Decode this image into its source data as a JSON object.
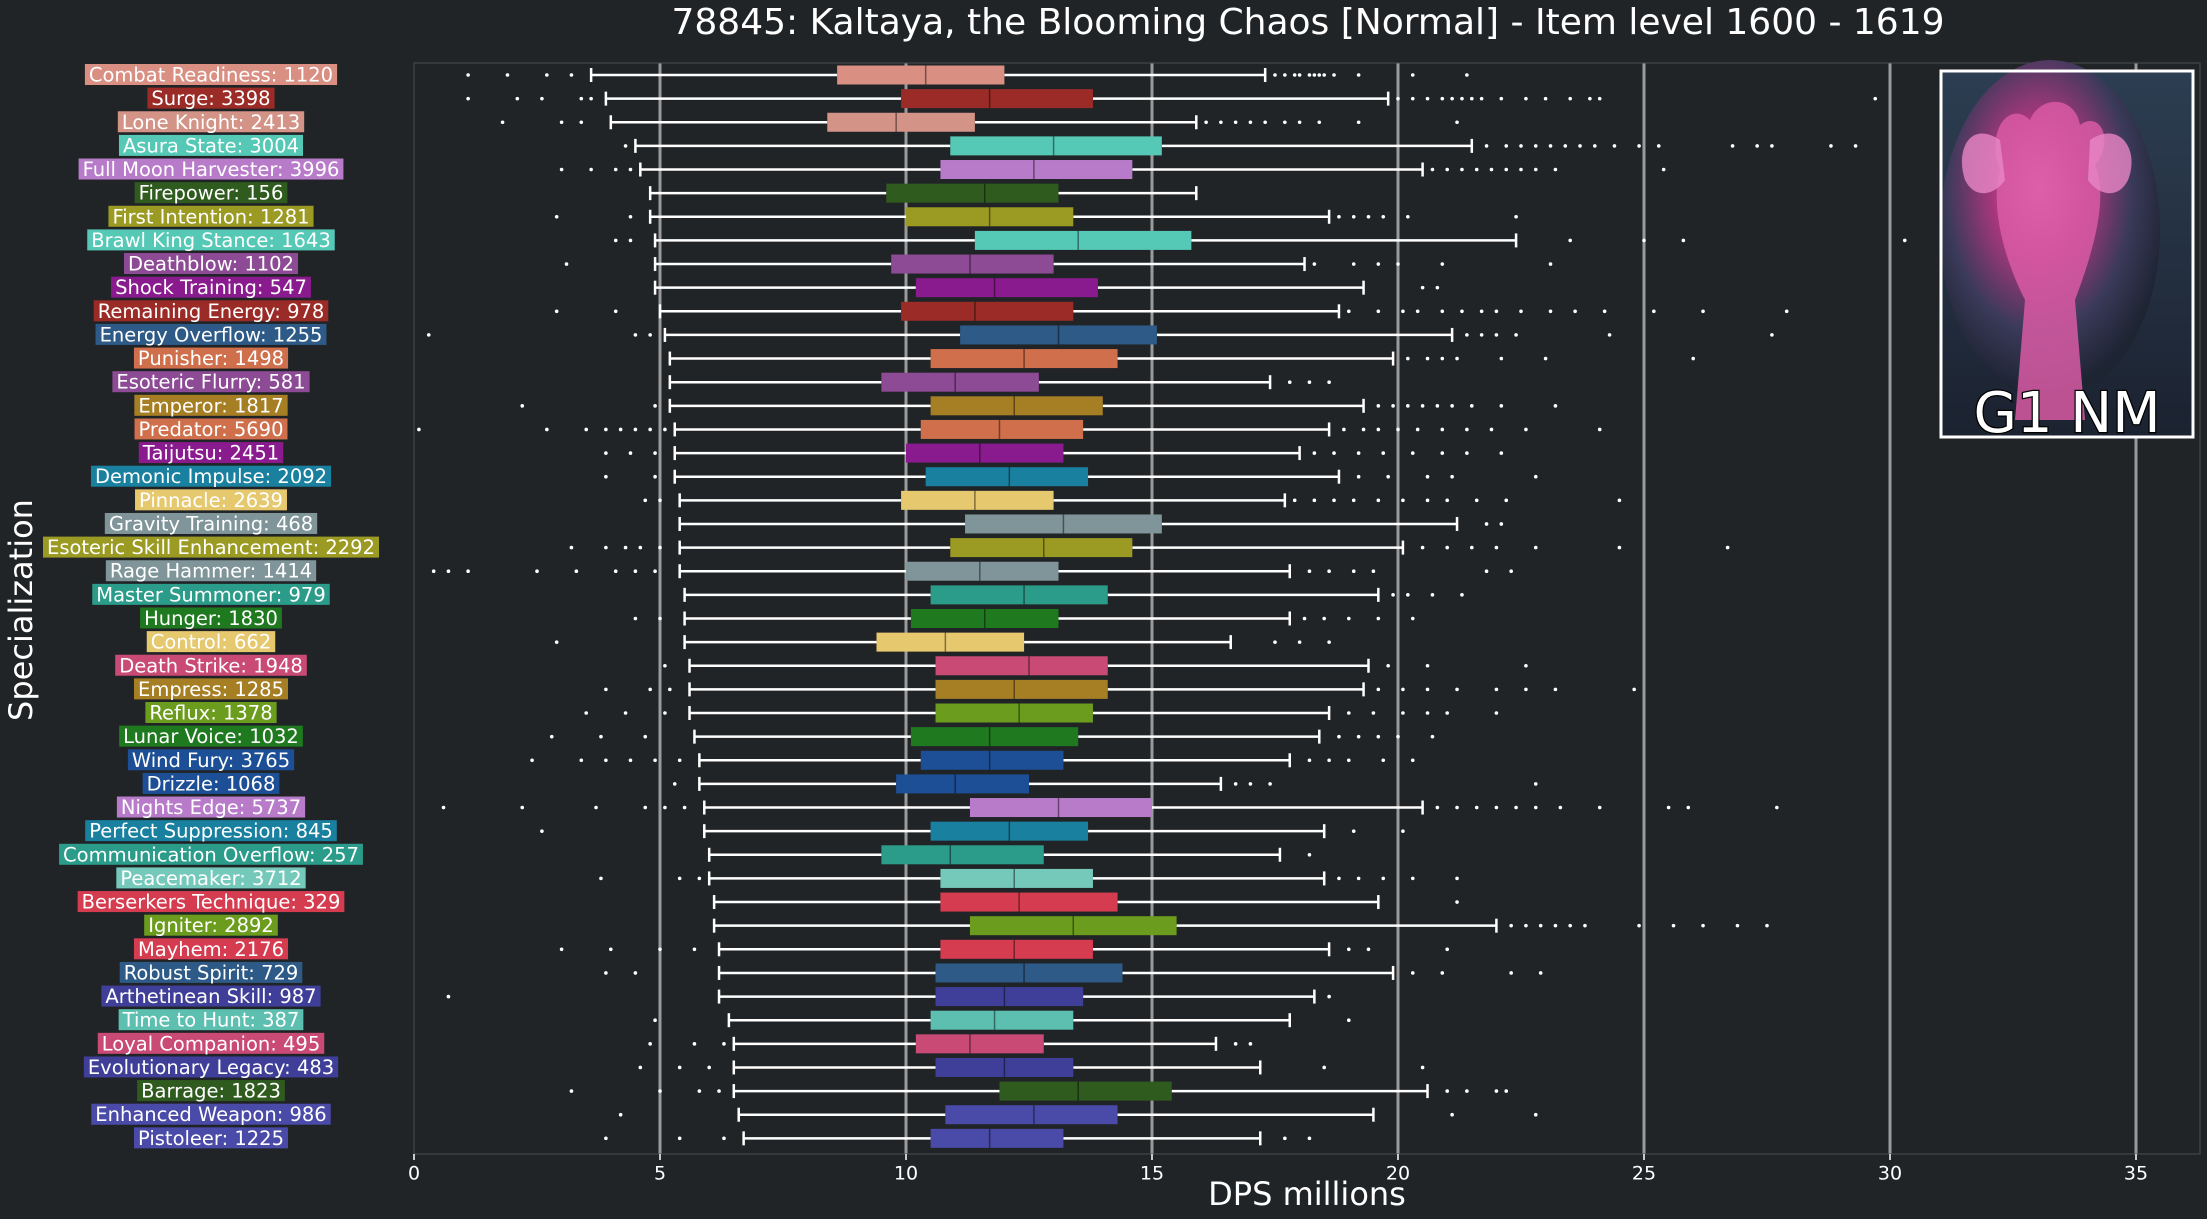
{
  "chart_data": {
    "type": "boxplot",
    "orientation": "horizontal",
    "title": "78845: Kaltaya, the Blooming Chaos [Normal] - Item level 1600 - 1619",
    "xlabel": "DPS millions",
    "ylabel": "Specialization",
    "xlim": [
      0,
      36.2
    ],
    "xticks": [
      0,
      5,
      10,
      15,
      20,
      25,
      30,
      35
    ],
    "grid": "vertical lines at 5, 10, 15, 20, 25, 30, 35",
    "badge": {
      "text": "G1 NM",
      "position": "top-right"
    },
    "colors": {
      "background": "#212427",
      "grid": "#9a9a9a",
      "whisker": "#ffffff",
      "outlier": "#ffffff"
    },
    "series": [
      {
        "label": "Combat Readiness: 1120",
        "color": "#d98f82",
        "q1": 8.6,
        "median": 10.4,
        "q3": 12.0,
        "whislo": 3.6,
        "whishi": 17.3,
        "outliers": [
          1.1,
          1.9,
          2.7,
          3.2,
          17.5,
          17.7,
          17.9,
          18.0,
          18.2,
          18.3,
          18.4,
          18.5,
          18.7,
          19.2,
          20.3,
          21.4
        ]
      },
      {
        "label": "Surge: 3398",
        "color": "#9b2b26",
        "q1": 9.9,
        "median": 11.7,
        "q3": 13.8,
        "whislo": 3.9,
        "whishi": 19.8,
        "outliers": [
          1.1,
          2.1,
          2.6,
          3.4,
          3.6,
          20.0,
          20.3,
          20.6,
          20.9,
          21.1,
          21.3,
          21.5,
          21.7,
          22.1,
          22.6,
          23.0,
          23.5,
          23.9,
          24.1,
          29.7
        ]
      },
      {
        "label": "Lone Knight: 2413",
        "color": "#d39487",
        "q1": 8.4,
        "median": 9.8,
        "q3": 11.4,
        "whislo": 4.0,
        "whishi": 15.9,
        "outliers": [
          1.8,
          3.0,
          3.4,
          16.1,
          16.4,
          16.7,
          17.0,
          17.3,
          17.7,
          18.0,
          18.4,
          19.2,
          21.2
        ]
      },
      {
        "label": "Asura State: 3004",
        "color": "#55c8b6",
        "q1": 10.9,
        "median": 13.0,
        "q3": 15.2,
        "whislo": 4.5,
        "whishi": 21.5,
        "outliers": [
          4.3,
          21.8,
          22.2,
          22.5,
          22.8,
          23.1,
          23.4,
          23.7,
          24.0,
          24.4,
          24.9,
          25.3,
          26.8,
          27.3,
          27.6,
          28.8,
          29.3
        ]
      },
      {
        "label": "Full Moon Harvester: 3996",
        "color": "#b87bc9",
        "q1": 10.7,
        "median": 12.6,
        "q3": 14.6,
        "whislo": 4.6,
        "whishi": 20.5,
        "outliers": [
          3.0,
          3.6,
          4.1,
          4.4,
          20.7,
          21.0,
          21.3,
          21.6,
          21.9,
          22.2,
          22.5,
          22.8,
          23.2,
          25.4
        ]
      },
      {
        "label": "Firepower: 156",
        "color": "#2f5b1f",
        "q1": 9.6,
        "median": 11.6,
        "q3": 13.1,
        "whislo": 4.8,
        "whishi": 15.9,
        "outliers": []
      },
      {
        "label": "First Intention: 1281",
        "color": "#9b9a22",
        "q1": 10.0,
        "median": 11.7,
        "q3": 13.4,
        "whislo": 4.8,
        "whishi": 18.6,
        "outliers": [
          2.9,
          4.4,
          18.8,
          19.1,
          19.4,
          19.7,
          20.2,
          22.4
        ]
      },
      {
        "label": "Brawl King Stance: 1643",
        "color": "#55c8b6",
        "q1": 11.4,
        "median": 13.5,
        "q3": 15.8,
        "whislo": 4.9,
        "whishi": 22.4,
        "outliers": [
          4.1,
          4.4,
          23.5,
          25.0,
          25.8,
          30.3
        ]
      },
      {
        "label": "Deathblow: 1102",
        "color": "#8e4b95",
        "q1": 9.7,
        "median": 11.3,
        "q3": 13.0,
        "whislo": 4.9,
        "whishi": 18.1,
        "outliers": [
          3.1,
          18.3,
          19.1,
          19.6,
          20.0,
          20.9,
          23.1
        ]
      },
      {
        "label": "Shock Training: 547",
        "color": "#8a1b8e",
        "q1": 10.2,
        "median": 11.8,
        "q3": 13.9,
        "whislo": 4.9,
        "whishi": 19.3,
        "outliers": [
          20.5,
          20.8
        ]
      },
      {
        "label": "Remaining Energy: 978",
        "color": "#9b2b26",
        "q1": 9.9,
        "median": 11.4,
        "q3": 13.4,
        "whislo": 5.0,
        "whishi": 18.8,
        "outliers": [
          2.9,
          4.1,
          19.0,
          19.6,
          20.1,
          20.4,
          20.9,
          21.3,
          21.7,
          22.0,
          22.5,
          23.1,
          23.6,
          24.2,
          25.2,
          26.2,
          27.9
        ]
      },
      {
        "label": "Energy Overflow: 1255",
        "color": "#2d5a86",
        "q1": 11.1,
        "median": 13.1,
        "q3": 15.1,
        "whislo": 5.1,
        "whishi": 21.1,
        "outliers": [
          0.3,
          4.5,
          4.8,
          21.4,
          21.7,
          22.0,
          22.4,
          24.3,
          27.6
        ]
      },
      {
        "label": "Punisher: 1498",
        "color": "#cf6f4b",
        "q1": 10.5,
        "median": 12.4,
        "q3": 14.3,
        "whislo": 5.2,
        "whishi": 19.9,
        "outliers": [
          20.2,
          20.6,
          20.9,
          21.2,
          22.1,
          23.0,
          26.0
        ]
      },
      {
        "label": "Esoteric Flurry: 581",
        "color": "#8e4b95",
        "q1": 9.5,
        "median": 11.0,
        "q3": 12.7,
        "whislo": 5.2,
        "whishi": 17.4,
        "outliers": [
          17.8,
          18.2,
          18.6
        ]
      },
      {
        "label": "Emperor: 1817",
        "color": "#a67f24",
        "q1": 10.5,
        "median": 12.2,
        "q3": 14.0,
        "whislo": 5.2,
        "whishi": 19.3,
        "outliers": [
          2.2,
          4.9,
          19.6,
          19.9,
          20.2,
          20.5,
          20.8,
          21.1,
          21.5,
          22.1,
          23.2
        ]
      },
      {
        "label": "Predator: 5690",
        "color": "#cf6f4b",
        "q1": 10.3,
        "median": 11.9,
        "q3": 13.6,
        "whislo": 5.3,
        "whishi": 18.6,
        "outliers": [
          0.1,
          2.7,
          3.5,
          3.9,
          4.2,
          4.5,
          4.8,
          5.1,
          18.9,
          19.3,
          19.6,
          20.0,
          20.4,
          20.9,
          21.4,
          21.9,
          22.6,
          24.1
        ]
      },
      {
        "label": "Taijutsu: 2451",
        "color": "#8a1b8e",
        "q1": 10.0,
        "median": 11.5,
        "q3": 13.2,
        "whislo": 5.3,
        "whishi": 18.0,
        "outliers": [
          3.9,
          4.4,
          4.9,
          18.3,
          18.7,
          19.2,
          19.7,
          20.3,
          20.9,
          21.4,
          22.1
        ]
      },
      {
        "label": "Demonic Impulse: 2092",
        "color": "#1980a0",
        "q1": 10.4,
        "median": 12.1,
        "q3": 13.7,
        "whislo": 5.3,
        "whishi": 18.8,
        "outliers": [
          3.9,
          4.9,
          19.2,
          19.8,
          20.6,
          21.1,
          22.8
        ]
      },
      {
        "label": "Pinnacle: 2639",
        "color": "#e6c86e",
        "q1": 9.9,
        "median": 11.4,
        "q3": 13.0,
        "whislo": 5.4,
        "whishi": 17.7,
        "outliers": [
          4.7,
          5.0,
          17.9,
          18.3,
          18.7,
          19.1,
          19.6,
          20.1,
          20.6,
          21.0,
          21.6,
          22.2,
          24.5
        ]
      },
      {
        "label": "Gravity Training: 468",
        "color": "#7f9599",
        "q1": 11.2,
        "median": 13.2,
        "q3": 15.2,
        "whislo": 5.4,
        "whishi": 21.2,
        "outliers": [
          21.8,
          22.1
        ]
      },
      {
        "label": "Esoteric Skill Enhancement: 2292",
        "color": "#9b9a22",
        "q1": 10.9,
        "median": 12.8,
        "q3": 14.6,
        "whislo": 5.4,
        "whishi": 20.1,
        "outliers": [
          3.2,
          3.9,
          4.3,
          4.6,
          5.0,
          20.5,
          21.0,
          21.5,
          22.0,
          22.8,
          24.5,
          26.7
        ]
      },
      {
        "label": "Rage Hammer: 1414",
        "color": "#7f9599",
        "q1": 10.0,
        "median": 11.5,
        "q3": 13.1,
        "whislo": 5.4,
        "whishi": 17.8,
        "outliers": [
          0.4,
          0.7,
          1.1,
          2.5,
          3.3,
          4.1,
          4.5,
          4.9,
          18.2,
          18.6,
          19.1,
          19.5,
          21.8,
          22.3
        ]
      },
      {
        "label": "Master Summoner: 979",
        "color": "#2c9c8a",
        "q1": 10.5,
        "median": 12.4,
        "q3": 14.1,
        "whislo": 5.5,
        "whishi": 19.6,
        "outliers": [
          19.9,
          20.2,
          20.7,
          21.3
        ]
      },
      {
        "label": "Hunger: 1830",
        "color": "#1f7a1f",
        "q1": 10.1,
        "median": 11.6,
        "q3": 13.1,
        "whislo": 5.5,
        "whishi": 17.8,
        "outliers": [
          4.5,
          5.0,
          18.1,
          18.5,
          19.0,
          19.6,
          20.3
        ]
      },
      {
        "label": "Control: 662",
        "color": "#e6c86e",
        "q1": 9.4,
        "median": 10.8,
        "q3": 12.4,
        "whislo": 5.5,
        "whishi": 16.6,
        "outliers": [
          2.9,
          17.5,
          18.0,
          18.6
        ]
      },
      {
        "label": "Death Strike: 1948",
        "color": "#c94a74",
        "q1": 10.6,
        "median": 12.5,
        "q3": 14.1,
        "whislo": 5.6,
        "whishi": 19.4,
        "outliers": [
          5.1,
          19.8,
          20.6,
          22.6
        ]
      },
      {
        "label": "Empress: 1285",
        "color": "#a67f24",
        "q1": 10.6,
        "median": 12.2,
        "q3": 14.1,
        "whislo": 5.6,
        "whishi": 19.3,
        "outliers": [
          3.9,
          4.8,
          5.2,
          19.6,
          20.1,
          20.6,
          21.2,
          22.0,
          22.6,
          23.2,
          24.8
        ]
      },
      {
        "label": "Reflux: 1378",
        "color": "#6b9c1e",
        "q1": 10.6,
        "median": 12.3,
        "q3": 13.8,
        "whislo": 5.6,
        "whishi": 18.6,
        "outliers": [
          3.5,
          4.3,
          5.1,
          19.0,
          19.5,
          20.1,
          20.6,
          21.0,
          22.0
        ]
      },
      {
        "label": "Lunar Voice: 1032",
        "color": "#1f7a1f",
        "q1": 10.1,
        "median": 11.7,
        "q3": 13.5,
        "whislo": 5.7,
        "whishi": 18.4,
        "outliers": [
          2.8,
          3.8,
          4.7,
          18.8,
          19.2,
          19.6,
          20.0,
          20.7
        ]
      },
      {
        "label": "Wind Fury: 3765",
        "color": "#1d4f96",
        "q1": 10.3,
        "median": 11.7,
        "q3": 13.2,
        "whislo": 5.8,
        "whishi": 17.8,
        "outliers": [
          2.4,
          3.4,
          3.9,
          4.4,
          4.9,
          5.4,
          18.2,
          18.6,
          19.0,
          19.7,
          20.3
        ]
      },
      {
        "label": "Drizzle: 1068",
        "color": "#1d4f96",
        "q1": 9.8,
        "median": 11.0,
        "q3": 12.5,
        "whislo": 5.8,
        "whishi": 16.4,
        "outliers": [
          5.3,
          16.7,
          17.0,
          17.4,
          22.8
        ]
      },
      {
        "label": "Nights Edge: 5737",
        "color": "#b87bc9",
        "q1": 11.3,
        "median": 13.1,
        "q3": 15.0,
        "whislo": 5.9,
        "whishi": 20.5,
        "outliers": [
          0.6,
          2.2,
          3.7,
          4.7,
          5.1,
          5.5,
          20.8,
          21.2,
          21.6,
          22.0,
          22.4,
          22.8,
          23.3,
          24.1,
          25.5,
          25.9,
          27.7
        ]
      },
      {
        "label": "Perfect Suppression: 845",
        "color": "#1980a0",
        "q1": 10.5,
        "median": 12.1,
        "q3": 13.7,
        "whislo": 5.9,
        "whishi": 18.5,
        "outliers": [
          2.6,
          19.1,
          20.1
        ]
      },
      {
        "label": "Communication Overflow: 257",
        "color": "#2c9c8a",
        "q1": 9.5,
        "median": 10.9,
        "q3": 12.8,
        "whislo": 6.0,
        "whishi": 17.6,
        "outliers": [
          18.2
        ]
      },
      {
        "label": "Peacemaker: 3712",
        "color": "#75c9bb",
        "q1": 10.7,
        "median": 12.2,
        "q3": 13.8,
        "whislo": 6.0,
        "whishi": 18.5,
        "outliers": [
          3.8,
          5.4,
          5.8,
          18.8,
          19.2,
          19.7,
          20.3,
          21.2
        ]
      },
      {
        "label": "Berserkers Technique: 329",
        "color": "#d63c50",
        "q1": 10.7,
        "median": 12.3,
        "q3": 14.3,
        "whislo": 6.1,
        "whishi": 19.6,
        "outliers": [
          21.2
        ]
      },
      {
        "label": "Igniter: 2892",
        "color": "#6b9c1e",
        "q1": 11.3,
        "median": 13.4,
        "q3": 15.5,
        "whislo": 6.1,
        "whishi": 22.0,
        "outliers": [
          22.3,
          22.6,
          22.9,
          23.2,
          23.5,
          23.8,
          24.9,
          25.6,
          26.2,
          26.9,
          27.5
        ]
      },
      {
        "label": "Mayhem: 2176",
        "color": "#d63c50",
        "q1": 10.7,
        "median": 12.2,
        "q3": 13.8,
        "whislo": 6.2,
        "whishi": 18.6,
        "outliers": [
          3.0,
          4.0,
          5.0,
          5.7,
          19.0,
          19.4,
          21.0
        ]
      },
      {
        "label": "Robust Spirit: 729",
        "color": "#2d5a86",
        "q1": 10.6,
        "median": 12.4,
        "q3": 14.4,
        "whislo": 6.2,
        "whishi": 19.9,
        "outliers": [
          3.9,
          4.5,
          20.3,
          20.9,
          22.3,
          22.9
        ]
      },
      {
        "label": "Arthetinean Skill: 987",
        "color": "#3f3f99",
        "q1": 10.6,
        "median": 12.0,
        "q3": 13.6,
        "whislo": 6.2,
        "whishi": 18.3,
        "outliers": [
          0.7,
          18.6
        ]
      },
      {
        "label": "Time to Hunt: 387",
        "color": "#5dbfb0",
        "q1": 10.5,
        "median": 11.8,
        "q3": 13.4,
        "whislo": 6.4,
        "whishi": 17.8,
        "outliers": [
          4.9,
          19.0
        ]
      },
      {
        "label": "Loyal Companion: 495",
        "color": "#c94a74",
        "q1": 10.2,
        "median": 11.3,
        "q3": 12.8,
        "whislo": 6.5,
        "whishi": 16.3,
        "outliers": [
          4.8,
          5.7,
          6.3,
          16.7,
          17.0
        ]
      },
      {
        "label": "Evolutionary Legacy: 483",
        "color": "#3f3f99",
        "q1": 10.6,
        "median": 12.0,
        "q3": 13.4,
        "whislo": 6.5,
        "whishi": 17.2,
        "outliers": [
          4.6,
          5.4,
          6.0,
          18.5,
          20.5
        ]
      },
      {
        "label": "Barrage: 1823",
        "color": "#2f5b1f",
        "q1": 11.9,
        "median": 13.5,
        "q3": 15.4,
        "whislo": 6.5,
        "whishi": 20.6,
        "outliers": [
          3.2,
          5.0,
          5.8,
          6.2,
          21.0,
          21.4,
          22.0,
          22.2
        ]
      },
      {
        "label": "Enhanced Weapon: 986",
        "color": "#4a4aa8",
        "q1": 10.8,
        "median": 12.6,
        "q3": 14.3,
        "whislo": 6.6,
        "whishi": 19.5,
        "outliers": [
          4.2,
          21.1,
          22.8
        ]
      },
      {
        "label": "Pistoleer: 1225",
        "color": "#4a4aa8",
        "q1": 10.5,
        "median": 11.7,
        "q3": 13.2,
        "whislo": 6.7,
        "whishi": 17.2,
        "outliers": [
          3.9,
          5.4,
          6.3,
          17.7,
          18.2
        ]
      }
    ]
  }
}
